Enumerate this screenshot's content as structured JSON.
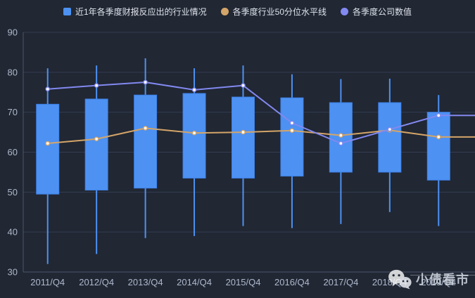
{
  "colors": {
    "background": "#212733",
    "grid": "#333d52",
    "axis": "#4b566e",
    "tick_label": "#aeb9cd",
    "legend_text": "#dfe4ec",
    "box_fill": "#4d91f2",
    "box_border": "#3d80e6",
    "line_median": "#d4a568",
    "line_company": "#8289f0",
    "marker_fill": "#ffffff"
  },
  "legend": {
    "items": [
      {
        "label": "近1年各季度财报反应出的行业情况",
        "marker": "square",
        "color": "#4d91f2"
      },
      {
        "label": "各季度行业50分位水平线",
        "marker": "circle",
        "color": "#d4a568"
      },
      {
        "label": "各季度公司数值",
        "marker": "circle",
        "color": "#8289f0"
      }
    ]
  },
  "watermark": {
    "text": "小债看市",
    "icon": "wechat-logo"
  },
  "chart_data": {
    "type": "candlestick",
    "title": "",
    "xlabel": "",
    "ylabel": "",
    "categories": [
      "2011/Q4",
      "2012/Q4",
      "2013/Q4",
      "2014/Q4",
      "2015/Q4",
      "2016/Q4",
      "2017/Q4",
      "2018/Q4",
      "2019/Q4"
    ],
    "ylim": [
      30,
      90
    ],
    "yticks": [
      30,
      40,
      50,
      60,
      70,
      80,
      90
    ],
    "grid": true,
    "legend_position": "top",
    "series": [
      {
        "name": "近1年各季度财报反应出的行业情况",
        "type": "candlestick",
        "color": "#4d91f2",
        "data_format": [
          "low",
          "q1",
          "q3",
          "high"
        ],
        "data": [
          [
            32,
            49.5,
            72,
            81
          ],
          [
            34.5,
            50.5,
            73.3,
            81.7
          ],
          [
            38.5,
            51,
            74.3,
            83.5
          ],
          [
            39,
            53.5,
            74.7,
            81
          ],
          [
            41.5,
            53.5,
            73.8,
            81.7
          ],
          [
            41,
            54,
            73.6,
            79.5
          ],
          [
            42,
            55,
            72.4,
            78.3
          ],
          [
            45,
            55,
            72.4,
            78.4
          ],
          [
            41.5,
            53,
            70,
            74.3
          ]
        ]
      },
      {
        "name": "各季度行业50分位水平线",
        "type": "line",
        "color": "#d4a568",
        "values": [
          62.2,
          63.3,
          66,
          64.8,
          65,
          65.4,
          64.2,
          65.5,
          63.8
        ]
      },
      {
        "name": "各季度公司数值",
        "type": "line",
        "color": "#8289f0",
        "values": [
          75.8,
          76.7,
          77.5,
          75.6,
          76.7,
          67.3,
          62.2,
          65.7,
          69.2
        ]
      }
    ]
  }
}
